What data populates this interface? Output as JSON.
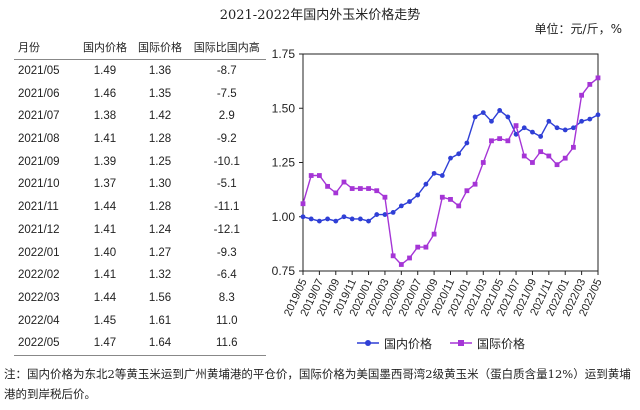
{
  "title": "2021-2022年国内外玉米价格走势",
  "unit": "单位：元/斤，%",
  "table": {
    "headers": [
      "月份",
      "国内价格",
      "国际价格",
      "国际比国内高"
    ],
    "rows": [
      [
        "2021/05",
        "1.49",
        "1.36",
        "-8.7"
      ],
      [
        "2021/06",
        "1.46",
        "1.35",
        "-7.5"
      ],
      [
        "2021/07",
        "1.38",
        "1.42",
        "2.9"
      ],
      [
        "2021/08",
        "1.41",
        "1.28",
        "-9.2"
      ],
      [
        "2021/09",
        "1.39",
        "1.25",
        "-10.1"
      ],
      [
        "2021/10",
        "1.37",
        "1.30",
        "-5.1"
      ],
      [
        "2021/11",
        "1.44",
        "1.28",
        "-11.1"
      ],
      [
        "2021/12",
        "1.41",
        "1.24",
        "-12.1"
      ],
      [
        "2022/01",
        "1.40",
        "1.27",
        "-9.3"
      ],
      [
        "2022/02",
        "1.41",
        "1.32",
        "-6.4"
      ],
      [
        "2022/03",
        "1.44",
        "1.56",
        "8.3"
      ],
      [
        "2022/04",
        "1.45",
        "1.61",
        "11.0"
      ],
      [
        "2022/05",
        "1.47",
        "1.64",
        "11.6"
      ]
    ]
  },
  "chart_data": {
    "type": "line",
    "title": "2021-2022年国内外玉米价格走势",
    "unit": "单位：元/斤，%",
    "ylim": [
      0.75,
      1.75
    ],
    "yticks": [
      "0.75",
      "1.00",
      "1.25",
      "1.50",
      "1.75"
    ],
    "x": [
      "2019/05",
      "2019/06",
      "2019/07",
      "2019/08",
      "2019/09",
      "2019/10",
      "2019/11",
      "2019/12",
      "2020/01",
      "2020/02",
      "2020/03",
      "2020/04",
      "2020/05",
      "2020/06",
      "2020/07",
      "2020/08",
      "2020/09",
      "2020/10",
      "2020/11",
      "2020/12",
      "2021/01",
      "2021/02",
      "2021/03",
      "2021/04",
      "2021/05",
      "2021/06",
      "2021/07",
      "2021/08",
      "2021/09",
      "2021/10",
      "2021/11",
      "2021/12",
      "2022/01",
      "2022/02",
      "2022/03",
      "2022/04",
      "2022/05"
    ],
    "xtick_labels": [
      "2019/05",
      "2019/07",
      "2019/09",
      "2019/11",
      "2020/01",
      "2020/03",
      "2020/05",
      "2020/07",
      "2020/09",
      "2020/11",
      "2021/01",
      "2021/03",
      "2021/05",
      "2021/07",
      "2021/09",
      "2021/11",
      "2022/01",
      "2022/03",
      "2022/05"
    ],
    "series": [
      {
        "name": "国内价格",
        "color": "#2f3fd6",
        "marker": "circle",
        "values": [
          1.0,
          0.99,
          0.98,
          0.99,
          0.98,
          1.0,
          0.99,
          0.99,
          0.98,
          1.01,
          1.01,
          1.02,
          1.05,
          1.07,
          1.1,
          1.15,
          1.2,
          1.19,
          1.27,
          1.29,
          1.34,
          1.46,
          1.48,
          1.44,
          1.49,
          1.46,
          1.38,
          1.41,
          1.39,
          1.37,
          1.44,
          1.41,
          1.4,
          1.41,
          1.44,
          1.45,
          1.47
        ]
      },
      {
        "name": "国际价格",
        "color": "#a535d6",
        "marker": "square",
        "values": [
          1.06,
          1.19,
          1.19,
          1.14,
          1.11,
          1.16,
          1.13,
          1.13,
          1.13,
          1.12,
          1.09,
          0.82,
          0.78,
          0.81,
          0.86,
          0.86,
          0.92,
          1.09,
          1.08,
          1.05,
          1.12,
          1.15,
          1.25,
          1.35,
          1.36,
          1.35,
          1.42,
          1.28,
          1.25,
          1.3,
          1.28,
          1.24,
          1.27,
          1.32,
          1.56,
          1.61,
          1.64
        ]
      }
    ]
  },
  "note": "注：国内价格为东北2等黄玉米运到广州黄埔港的平仓价，国际价格为美国墨西哥湾2级黄玉米（蛋白质含量12%）运到黄埔港的到岸税后价。"
}
